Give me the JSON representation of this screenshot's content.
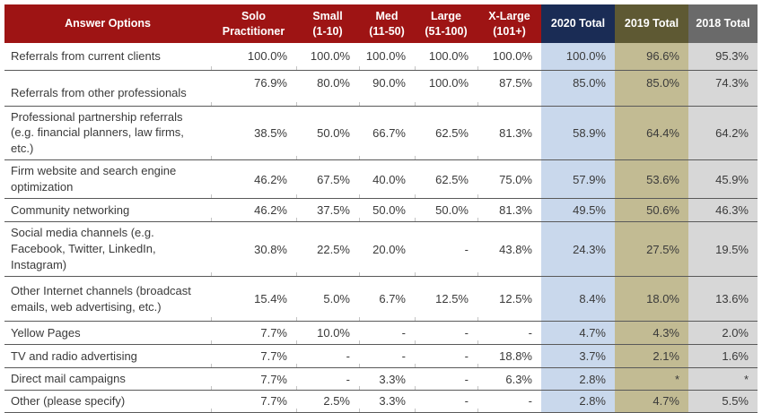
{
  "colors": {
    "header_red": "#9E1414",
    "header_navy": "#1A2C55",
    "header_olive": "#5E5933",
    "header_gray": "#6A6A6A",
    "tint_2020": "#C9D8EC",
    "tint_2019": "#C2BB93",
    "tint_2018": "#D7D7D7",
    "row_border": "#595959",
    "body_text": "#3A3A3A",
    "header_text": "#FFFFFF",
    "tick": "#C4C4C4"
  },
  "chart_data": {
    "type": "table",
    "columns": [
      "Answer Options",
      "Solo\nPractitioner",
      "Small\n(1-10)",
      "Med\n(11-50)",
      "Large\n(51-100)",
      "X-Large\n(101+)",
      "2020 Total",
      "2019 Total",
      "2018 Total"
    ],
    "rows": [
      [
        "Referrals from current clients",
        "100.0%",
        "100.0%",
        "100.0%",
        "100.0%",
        "100.0%",
        "100.0%",
        "96.6%",
        "95.3%"
      ],
      [
        "Referrals from other professionals",
        "76.9%",
        "80.0%",
        "90.0%",
        "100.0%",
        "87.5%",
        "85.0%",
        "85.0%",
        "74.3%"
      ],
      [
        "Professional partnership referrals (e.g. financial planners, law firms, etc.)",
        "38.5%",
        "50.0%",
        "66.7%",
        "62.5%",
        "81.3%",
        "58.9%",
        "64.4%",
        "64.2%"
      ],
      [
        "Firm website and search engine optimization",
        "46.2%",
        "67.5%",
        "40.0%",
        "62.5%",
        "75.0%",
        "57.9%",
        "53.6%",
        "45.9%"
      ],
      [
        "Community networking",
        "46.2%",
        "37.5%",
        "50.0%",
        "50.0%",
        "81.3%",
        "49.5%",
        "50.6%",
        "46.3%"
      ],
      [
        "Social media channels (e.g. Facebook, Twitter, LinkedIn, Instagram)",
        "30.8%",
        "22.5%",
        "20.0%",
        "-",
        "43.8%",
        "24.3%",
        "27.5%",
        "19.5%"
      ],
      [
        "Other Internet channels (broadcast emails, web advertising, etc.)",
        "15.4%",
        "5.0%",
        "6.7%",
        "12.5%",
        "12.5%",
        "8.4%",
        "18.0%",
        "13.6%"
      ],
      [
        "Yellow Pages",
        "7.7%",
        "10.0%",
        "-",
        "-",
        "-",
        "4.7%",
        "4.3%",
        "2.0%"
      ],
      [
        "TV and radio advertising",
        "7.7%",
        "-",
        "-",
        "-",
        "18.8%",
        "3.7%",
        "2.1%",
        "1.6%"
      ],
      [
        "Direct mail campaigns",
        "7.7%",
        "-",
        "3.3%",
        "-",
        "6.3%",
        "2.8%",
        "*",
        "*"
      ],
      [
        "Other (please specify)",
        "7.7%",
        "2.5%",
        "3.3%",
        "-",
        "-",
        "2.8%",
        "4.7%",
        "5.5%"
      ]
    ]
  }
}
